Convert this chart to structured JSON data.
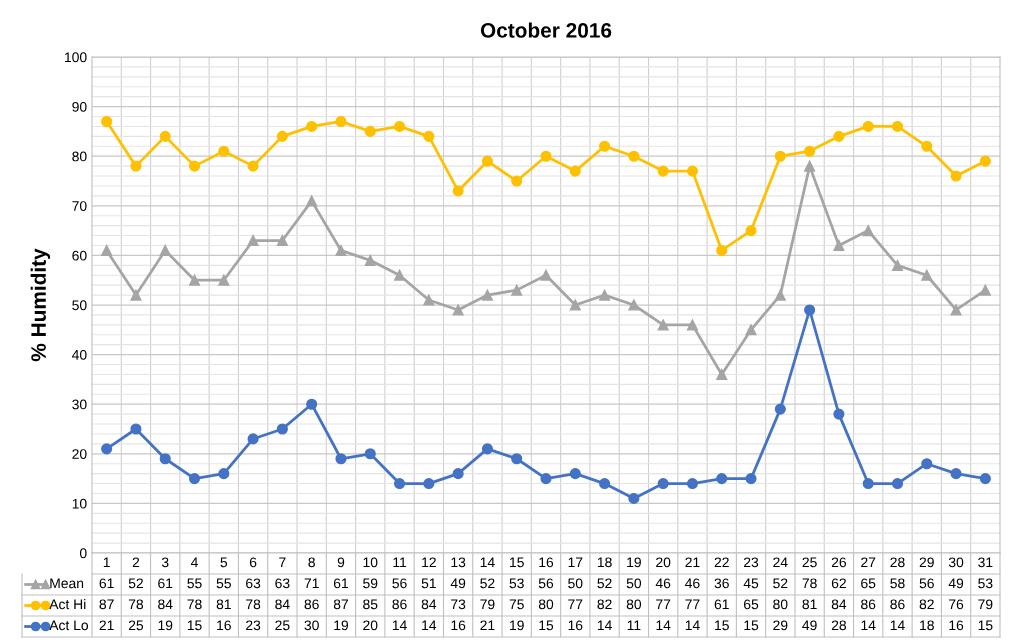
{
  "chart_data": {
    "type": "line",
    "title": "October 2016",
    "ylabel": "% Humidity",
    "categories": [
      "1",
      "2",
      "3",
      "4",
      "5",
      "6",
      "7",
      "8",
      "9",
      "10",
      "11",
      "12",
      "13",
      "14",
      "15",
      "16",
      "17",
      "18",
      "19",
      "20",
      "21",
      "22",
      "23",
      "24",
      "25",
      "26",
      "27",
      "28",
      "29",
      "30",
      "31"
    ],
    "series": [
      {
        "name": "Mean",
        "color": "#a5a5a5",
        "marker": "triangle",
        "values": [
          61,
          52,
          61,
          55,
          55,
          63,
          63,
          71,
          61,
          59,
          56,
          51,
          49,
          52,
          53,
          56,
          50,
          52,
          50,
          46,
          46,
          36,
          45,
          52,
          78,
          62,
          65,
          58,
          56,
          49,
          53
        ]
      },
      {
        "name": "Act Hi",
        "color": "#ffc000",
        "marker": "circle",
        "values": [
          87,
          78,
          84,
          78,
          81,
          78,
          84,
          86,
          87,
          85,
          86,
          84,
          73,
          79,
          75,
          80,
          77,
          82,
          80,
          77,
          77,
          61,
          65,
          80,
          81,
          84,
          86,
          86,
          82,
          76,
          79
        ]
      },
      {
        "name": "Act Lo",
        "color": "#4472c4",
        "marker": "circle",
        "values": [
          21,
          25,
          19,
          15,
          16,
          23,
          25,
          30,
          19,
          20,
          14,
          14,
          16,
          21,
          19,
          15,
          16,
          14,
          11,
          14,
          14,
          15,
          15,
          29,
          49,
          28,
          14,
          14,
          18,
          16,
          15
        ]
      }
    ],
    "ylim": [
      0,
      100
    ],
    "yticks": [
      0,
      10,
      20,
      30,
      40,
      50,
      60,
      70,
      80,
      90,
      100
    ],
    "grid": true,
    "legend": "bottom",
    "data_labels": true,
    "line_style": "solid"
  }
}
